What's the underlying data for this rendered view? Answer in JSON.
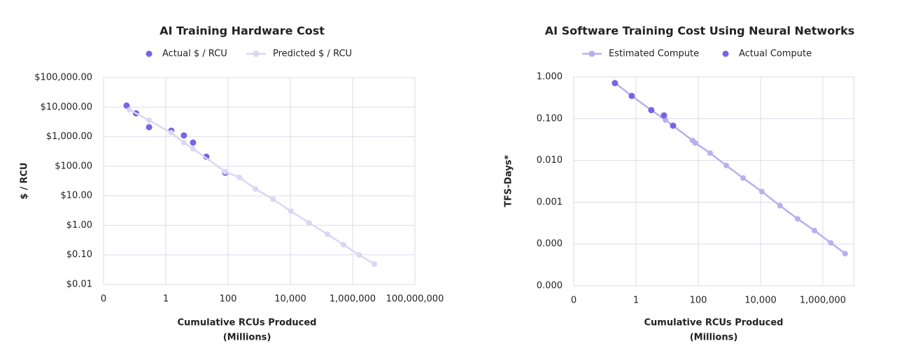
{
  "chart_data": [
    {
      "type": "line",
      "title": "AI Training Hardware Cost",
      "x_label": [
        "Cumulative RCUs Produced",
        "(Millions)"
      ],
      "y_label": "$ / RCU",
      "log_x": true,
      "log_y": true,
      "grid": true,
      "legend": "top",
      "xlim": [
        0.01,
        100000000
      ],
      "xticks": [
        {
          "value": 0.01,
          "label": "0"
        },
        1,
        100,
        {
          "value": 10000,
          "label": "10,000"
        },
        {
          "value": 1000000,
          "label": "1,000,000"
        },
        {
          "value": 100000000,
          "label": "100,000,000"
        }
      ],
      "ylim": [
        0.01,
        100000
      ],
      "yticks": [
        {
          "value": 0.01,
          "label": "$0.01"
        },
        {
          "value": 0.1,
          "label": "$0.10"
        },
        {
          "value": 1,
          "label": "$1.00"
        },
        {
          "value": 10,
          "label": "$10.00"
        },
        {
          "value": 100,
          "label": "$100.00"
        },
        {
          "value": 1000,
          "label": "$1,000.00"
        },
        {
          "value": 10000,
          "label": "$10,000.00"
        },
        {
          "value": 100000,
          "label": "$100,000.00"
        }
      ],
      "series": [
        {
          "name": "Actual $ / RCU",
          "color": "#7b63e6",
          "mode": "markers",
          "x": [
            0.055,
            0.11,
            0.29,
            1.5,
            3.8,
            7.5,
            20,
            81
          ],
          "values": [
            11300,
            6200,
            2100,
            1600,
            1100,
            630,
            210,
            60
          ]
        },
        {
          "name": "Predicted $ / RCU",
          "color": "#dcd6f5",
          "mode": "lines+markers",
          "x": [
            0.068,
            0.29,
            1.5,
            3.8,
            7.5,
            81,
            230,
            760,
            2800,
            10500,
            40000,
            155000,
            510000,
            1600000,
            5000000
          ],
          "values": [
            8100,
            3600,
            1350,
            630,
            390,
            65,
            42,
            17,
            7.6,
            3.0,
            1.2,
            0.5,
            0.22,
            0.1,
            0.049
          ]
        }
      ]
    },
    {
      "type": "line",
      "title": "AI Software Training Cost Using Neural Networks",
      "x_label": [
        "Cumulative RCUs Produced",
        "(Millions)"
      ],
      "y_label": "TFS-Days*",
      "log_x": true,
      "log_y": true,
      "grid": true,
      "legend": "top",
      "xlim": [
        0.01,
        10000000
      ],
      "xticks": [
        {
          "value": 0.01,
          "label": "0"
        },
        1,
        100,
        {
          "value": 10000,
          "label": "10,000"
        },
        {
          "value": 1000000,
          "label": "1,000,000"
        }
      ],
      "ylim": [
        1e-05,
        1
      ],
      "yticks": [
        {
          "value": 1e-05,
          "label": "0.000"
        },
        {
          "value": 0.0001,
          "label": "0.000"
        },
        {
          "value": 0.001,
          "label": "0.001"
        },
        {
          "value": 0.01,
          "label": "0.010"
        },
        {
          "value": 0.1,
          "label": "0.100"
        },
        {
          "value": 1,
          "label": "1.000"
        }
      ],
      "series": [
        {
          "name": "Estimated Compute",
          "color": "#b9aff0",
          "mode": "lines+markers",
          "x": [
            0.21,
            0.73,
            3.1,
            8.8,
            15.5,
            66,
            81,
            240,
            790,
            2750,
            11000,
            42000,
            155000,
            540000,
            1800000,
            5200000
          ],
          "values": [
            0.72,
            0.35,
            0.16,
            0.093,
            0.068,
            0.03,
            0.026,
            0.015,
            0.0076,
            0.0038,
            0.0018,
            0.00083,
            0.0004,
            0.00021,
            0.000107,
            5.9e-05
          ]
        },
        {
          "name": "Actual Compute",
          "color": "#7b63e6",
          "mode": "markers",
          "x": [
            0.21,
            0.73,
            3.1,
            7.9,
            15.5
          ],
          "values": [
            0.71,
            0.35,
            0.16,
            0.12,
            0.068
          ]
        }
      ]
    }
  ]
}
